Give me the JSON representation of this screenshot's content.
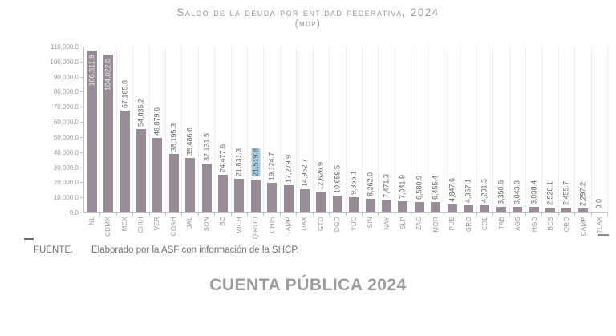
{
  "title": {
    "line1": "Saldo de la deuda por entidad federativa, 2024",
    "line2": "(mdp)"
  },
  "source": {
    "label": "FUENTE.",
    "text": "Elaborado por la ASF con información de la SHCP."
  },
  "banner": "CUENTA PÚBLICA 2024",
  "chart_data": {
    "type": "bar",
    "title": "Saldo de la deuda por entidad federativa, 2024",
    "subtitle": "(MDP)",
    "ylabel": "",
    "xlabel": "",
    "ylim": [
      0,
      110000
    ],
    "y_tick_step": 10000,
    "y_tick_labels_top_to_bottom": [
      "110,000.0",
      "100,000.0",
      "90,000.0",
      "80,000.0",
      "70,000.0",
      "60,000.0",
      "50,000.0",
      "40,000.0",
      "30,000.0",
      "20,000.0",
      "10,000.0",
      "0.0"
    ],
    "grid": "vertical category separators only",
    "legend_position": "none",
    "bar_color": "#988c96",
    "highlight_color": "#a6cce2",
    "highlighted_category": "Q ROO",
    "entities": [
      {
        "label": "NL",
        "value": 106811.9,
        "display": "106,811.9"
      },
      {
        "label": "CDMX",
        "value": 104022.0,
        "display": "104,022.0"
      },
      {
        "label": "MEX",
        "value": 67165.8,
        "display": "67,165.8"
      },
      {
        "label": "CHIH",
        "value": 54835.2,
        "display": "54,835.2"
      },
      {
        "label": "VER",
        "value": 48879.6,
        "display": "48,879.6"
      },
      {
        "label": "COAH",
        "value": 38195.3,
        "display": "38,195.3"
      },
      {
        "label": "JAL",
        "value": 35486.6,
        "display": "35,486.6"
      },
      {
        "label": "SON",
        "value": 32131.5,
        "display": "32,131.5"
      },
      {
        "label": "BC",
        "value": 24477.6,
        "display": "24,477.6"
      },
      {
        "label": "MICH",
        "value": 21831.3,
        "display": "21,831.3"
      },
      {
        "label": "Q ROO",
        "value": 21519.8,
        "display": "21,519.8",
        "highlight": true
      },
      {
        "label": "CHIS",
        "value": 19124.7,
        "display": "19,124.7"
      },
      {
        "label": "TAMP",
        "value": 17279.9,
        "display": "17,279.9"
      },
      {
        "label": "OAX",
        "value": 14952.7,
        "display": "14,952.7"
      },
      {
        "label": "GTO",
        "value": 12626.9,
        "display": "12,626.9"
      },
      {
        "label": "DGO",
        "value": 10659.5,
        "display": "10,659.5"
      },
      {
        "label": "YUC",
        "value": 9355.1,
        "display": "9,355.1"
      },
      {
        "label": "SIN",
        "value": 8262.0,
        "display": "8,262.0"
      },
      {
        "label": "NAY",
        "value": 7471.3,
        "display": "7,471.3"
      },
      {
        "label": "SLP",
        "value": 7041.9,
        "display": "7,041.9"
      },
      {
        "label": "ZAC",
        "value": 6580.9,
        "display": "6,580.9"
      },
      {
        "label": "MOR",
        "value": 6455.4,
        "display": "6,455.4"
      },
      {
        "label": "PUE",
        "value": 4847.6,
        "display": "4,847.6"
      },
      {
        "label": "GRO",
        "value": 4367.1,
        "display": "4,367.1"
      },
      {
        "label": "COL",
        "value": 4201.3,
        "display": "4,201.3"
      },
      {
        "label": "TAB",
        "value": 3350.6,
        "display": "3,350.6"
      },
      {
        "label": "AGS",
        "value": 3043.3,
        "display": "3,043.3"
      },
      {
        "label": "HGO",
        "value": 3038.4,
        "display": "3,038.4"
      },
      {
        "label": "BCS",
        "value": 2520.1,
        "display": "2,520.1"
      },
      {
        "label": "QRO",
        "value": 2455.7,
        "display": "2,455.7"
      },
      {
        "label": "CAMP",
        "value": 2297.2,
        "display": "2,297.2"
      },
      {
        "label": "TLAX",
        "value": 0.0,
        "display": "0.0"
      }
    ]
  }
}
